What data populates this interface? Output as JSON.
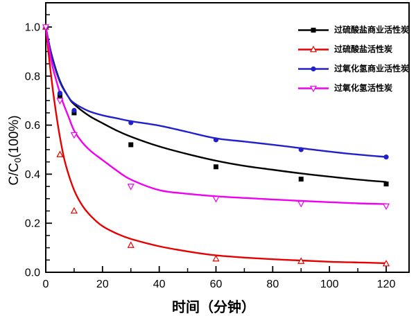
{
  "chart_data": {
    "type": "line",
    "xlabel": "时间（分钟）",
    "ylabel": "C/C0(100%)",
    "ylabel_parts": {
      "pre": "C/C",
      "sub": "0",
      "post": "(100%)"
    },
    "xlim": [
      0,
      128
    ],
    "ylim": [
      0,
      1.1
    ],
    "grid": false,
    "legend_position": "top-right",
    "x_major_ticks": [
      {
        "v": 0,
        "label": "0"
      },
      {
        "v": 20,
        "label": "20"
      },
      {
        "v": 40,
        "label": "40"
      },
      {
        "v": 60,
        "label": "60"
      },
      {
        "v": 80,
        "label": "80"
      },
      {
        "v": 100,
        "label": "100"
      },
      {
        "v": 120,
        "label": "120"
      }
    ],
    "x_minor_ticks": [
      10,
      30,
      50,
      70,
      90,
      110
    ],
    "y_major_ticks": [
      {
        "v": 0.0,
        "label": "0.0"
      },
      {
        "v": 0.2,
        "label": "0.2"
      },
      {
        "v": 0.4,
        "label": "0.4"
      },
      {
        "v": 0.6,
        "label": "0.6"
      },
      {
        "v": 0.8,
        "label": "0.8"
      },
      {
        "v": 1.0,
        "label": "1.0"
      }
    ],
    "y_minor_ticks": [
      0.05,
      0.1,
      0.15,
      0.25,
      0.3,
      0.35,
      0.45,
      0.5,
      0.55,
      0.65,
      0.7,
      0.75,
      0.85,
      0.9,
      0.95,
      1.05
    ],
    "series": [
      {
        "name": "过硫酸盐商业活性炭",
        "color": "#000000",
        "marker": "square-filled",
        "x": [
          0,
          5,
          10,
          30,
          60,
          90,
          120
        ],
        "y": [
          1.0,
          0.72,
          0.65,
          0.52,
          0.43,
          0.38,
          0.36
        ],
        "fit_x": [
          0,
          2,
          5,
          8,
          10,
          15,
          20,
          25,
          30,
          40,
          50,
          60,
          70,
          80,
          90,
          100,
          110,
          120
        ],
        "fit_y": [
          1.0,
          0.89,
          0.78,
          0.715,
          0.685,
          0.64,
          0.608,
          0.578,
          0.553,
          0.513,
          0.482,
          0.455,
          0.434,
          0.418,
          0.403,
          0.39,
          0.378,
          0.368
        ]
      },
      {
        "name": "过硫酸盐活性炭",
        "color": "#e60000",
        "marker": "triangle-up-open",
        "x": [
          0,
          5,
          10,
          30,
          60,
          90,
          120
        ],
        "y": [
          1.0,
          0.48,
          0.25,
          0.11,
          0.055,
          0.045,
          0.035
        ],
        "fit_x": [
          0,
          1.5,
          3,
          5,
          7,
          10,
          13,
          16,
          20,
          25,
          30,
          40,
          50,
          60,
          70,
          80,
          90,
          100,
          110,
          120
        ],
        "fit_y": [
          1.0,
          0.84,
          0.7,
          0.55,
          0.44,
          0.335,
          0.27,
          0.228,
          0.188,
          0.158,
          0.136,
          0.106,
          0.085,
          0.069,
          0.06,
          0.053,
          0.048,
          0.043,
          0.04,
          0.037
        ]
      },
      {
        "name": "过氧化氢商业活性炭",
        "color": "#2020cc",
        "marker": "circle-filled",
        "x": [
          0,
          5,
          10,
          30,
          60,
          90,
          120
        ],
        "y": [
          1.0,
          0.73,
          0.66,
          0.61,
          0.54,
          0.5,
          0.47
        ],
        "fit_x": [
          0,
          2,
          5,
          8,
          10,
          15,
          20,
          25,
          30,
          40,
          50,
          60,
          70,
          80,
          90,
          100,
          110,
          120
        ],
        "fit_y": [
          1.0,
          0.885,
          0.775,
          0.715,
          0.69,
          0.658,
          0.64,
          0.628,
          0.616,
          0.598,
          0.572,
          0.546,
          0.533,
          0.52,
          0.506,
          0.492,
          0.48,
          0.47
        ]
      },
      {
        "name": "过氧化氢活性炭",
        "color": "#f000f0",
        "marker": "triangle-down-open",
        "x": [
          0,
          5,
          10,
          30,
          60,
          90,
          120
        ],
        "y": [
          1.0,
          0.7,
          0.56,
          0.35,
          0.3,
          0.28,
          0.27
        ],
        "fit_x": [
          0,
          2,
          4,
          6,
          8,
          10,
          13,
          16,
          20,
          25,
          30,
          40,
          50,
          60,
          70,
          80,
          90,
          100,
          110,
          120
        ],
        "fit_y": [
          1.0,
          0.86,
          0.77,
          0.695,
          0.635,
          0.578,
          0.528,
          0.493,
          0.458,
          0.415,
          0.378,
          0.335,
          0.32,
          0.31,
          0.303,
          0.297,
          0.291,
          0.286,
          0.281,
          0.278
        ]
      }
    ]
  }
}
